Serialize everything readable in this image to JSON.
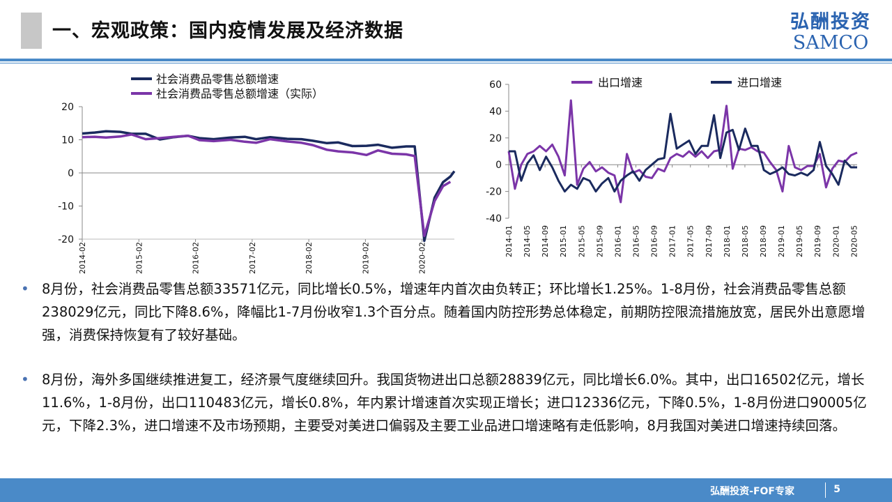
{
  "header": {
    "title": "一、宏观政策：国内疫情发展及经济数据",
    "logo_cn": "弘酬投资",
    "logo_en": "SAMCO",
    "colors": {
      "rule": "#4a8ac8",
      "logo": "#2a63b0"
    }
  },
  "chart_data": [
    {
      "type": "line",
      "series": [
        {
          "name": "社会消费品零售总额增速",
          "color": "#1a2a5e",
          "values": [
            [
              2014.08,
              11.9
            ],
            [
              2014.3,
              12.2
            ],
            [
              2014.5,
              12.6
            ],
            [
              2014.75,
              12.4
            ],
            [
              2014.95,
              11.8
            ],
            [
              2015.2,
              11.8
            ],
            [
              2015.45,
              10.1
            ],
            [
              2015.7,
              10.8
            ],
            [
              2015.95,
              11.2
            ],
            [
              2016.15,
              10.5
            ],
            [
              2016.4,
              10.2
            ],
            [
              2016.7,
              10.7
            ],
            [
              2016.95,
              10.9
            ],
            [
              2017.15,
              10.2
            ],
            [
              2017.4,
              10.8
            ],
            [
              2017.7,
              10.3
            ],
            [
              2017.95,
              10.2
            ],
            [
              2018.15,
              9.7
            ],
            [
              2018.4,
              9.0
            ],
            [
              2018.6,
              9.2
            ],
            [
              2018.85,
              8.1
            ],
            [
              2019.1,
              8.2
            ],
            [
              2019.3,
              8.5
            ],
            [
              2019.55,
              7.6
            ],
            [
              2019.8,
              8.0
            ],
            [
              2019.95,
              8.0
            ],
            [
              2020.12,
              -20.5
            ],
            [
              2020.3,
              -7.5
            ],
            [
              2020.45,
              -2.8
            ],
            [
              2020.58,
              -1.1
            ],
            [
              2020.65,
              0.5
            ]
          ]
        },
        {
          "name": "社会消费品零售总额增速（实际）",
          "color": "#7b35a8",
          "values": [
            [
              2014.08,
              10.8
            ],
            [
              2014.3,
              10.9
            ],
            [
              2014.5,
              10.7
            ],
            [
              2014.75,
              11.0
            ],
            [
              2014.95,
              11.6
            ],
            [
              2015.2,
              10.2
            ],
            [
              2015.45,
              10.5
            ],
            [
              2015.7,
              10.9
            ],
            [
              2015.95,
              11.2
            ],
            [
              2016.15,
              9.9
            ],
            [
              2016.4,
              9.6
            ],
            [
              2016.7,
              10.0
            ],
            [
              2016.95,
              9.4
            ],
            [
              2017.15,
              9.1
            ],
            [
              2017.4,
              10.2
            ],
            [
              2017.7,
              9.5
            ],
            [
              2017.95,
              9.1
            ],
            [
              2018.15,
              8.4
            ],
            [
              2018.4,
              7.0
            ],
            [
              2018.6,
              6.5
            ],
            [
              2018.85,
              6.2
            ],
            [
              2019.1,
              5.4
            ],
            [
              2019.3,
              6.8
            ],
            [
              2019.55,
              5.8
            ],
            [
              2019.8,
              5.6
            ],
            [
              2019.95,
              5.1
            ],
            [
              2020.12,
              -19.0
            ],
            [
              2020.3,
              -8.5
            ],
            [
              2020.45,
              -4.0
            ],
            [
              2020.58,
              -2.7
            ]
          ]
        }
      ],
      "y_ticks": [
        "20",
        "10",
        "0",
        "-10",
        "-20"
      ],
      "x_ticks": [
        "2014-02",
        "2015-02",
        "2016-02",
        "2017-02",
        "2018-02",
        "2019-02",
        "2020-02"
      ],
      "ylim": [
        -20,
        20
      ]
    },
    {
      "type": "line",
      "series": [
        {
          "name": "出口增速",
          "color": "#7b35a8",
          "values": [
            [
              0,
              10
            ],
            [
              1,
              -18
            ],
            [
              2,
              0
            ],
            [
              3,
              8
            ],
            [
              4,
              10
            ],
            [
              5,
              14
            ],
            [
              6,
              10
            ],
            [
              7,
              15
            ],
            [
              8,
              6
            ],
            [
              9,
              -8
            ],
            [
              10,
              48
            ],
            [
              11,
              -15
            ],
            [
              12,
              -3
            ],
            [
              13,
              2
            ],
            [
              14,
              -5
            ],
            [
              15,
              -2
            ],
            [
              16,
              -6
            ],
            [
              17,
              -8
            ],
            [
              18,
              -28
            ],
            [
              19,
              8
            ],
            [
              20,
              -6
            ],
            [
              21,
              -4
            ],
            [
              22,
              -9
            ],
            [
              23,
              -10
            ],
            [
              24,
              -3
            ],
            [
              25,
              -5
            ],
            [
              26,
              5
            ],
            [
              27,
              8
            ],
            [
              28,
              6
            ],
            [
              29,
              10
            ],
            [
              30,
              6
            ],
            [
              31,
              10
            ],
            [
              32,
              5
            ],
            [
              33,
              10
            ],
            [
              34,
              11
            ],
            [
              35,
              44
            ],
            [
              36,
              -3
            ],
            [
              37,
              12
            ],
            [
              38,
              11
            ],
            [
              39,
              13
            ],
            [
              40,
              10
            ],
            [
              41,
              9
            ],
            [
              42,
              2
            ],
            [
              43,
              -4
            ],
            [
              44,
              -20
            ],
            [
              45,
              14
            ],
            [
              46,
              -2
            ],
            [
              47,
              -4
            ],
            [
              48,
              -1
            ],
            [
              49,
              -1
            ],
            [
              50,
              8
            ],
            [
              51,
              -17
            ],
            [
              52,
              -3
            ],
            [
              53,
              3
            ],
            [
              54,
              2
            ],
            [
              55,
              7
            ],
            [
              56,
              9
            ]
          ]
        },
        {
          "name": "进口增速",
          "color": "#1a2a5e",
          "values": [
            [
              0,
              10
            ],
            [
              1,
              10
            ],
            [
              2,
              -12
            ],
            [
              3,
              1
            ],
            [
              4,
              7
            ],
            [
              5,
              -4
            ],
            [
              6,
              6
            ],
            [
              7,
              -2
            ],
            [
              8,
              -12
            ],
            [
              9,
              -20
            ],
            [
              10,
              -15
            ],
            [
              11,
              -18
            ],
            [
              12,
              -10
            ],
            [
              13,
              -12
            ],
            [
              14,
              -20
            ],
            [
              15,
              -14
            ],
            [
              16,
              -10
            ],
            [
              17,
              -20
            ],
            [
              18,
              -12
            ],
            [
              19,
              -8
            ],
            [
              20,
              -5
            ],
            [
              21,
              -12
            ],
            [
              22,
              -4
            ],
            [
              23,
              0
            ],
            [
              24,
              4
            ],
            [
              25,
              5
            ],
            [
              26,
              38
            ],
            [
              27,
              12
            ],
            [
              28,
              15
            ],
            [
              29,
              18
            ],
            [
              30,
              8
            ],
            [
              31,
              14
            ],
            [
              32,
              14
            ],
            [
              33,
              37
            ],
            [
              34,
              5
            ],
            [
              35,
              24
            ],
            [
              36,
              26
            ],
            [
              37,
              11
            ],
            [
              38,
              27
            ],
            [
              39,
              14
            ],
            [
              40,
              14
            ],
            [
              41,
              -4
            ],
            [
              42,
              -7
            ],
            [
              43,
              -5
            ],
            [
              44,
              -2
            ],
            [
              45,
              -7
            ],
            [
              46,
              -8
            ],
            [
              47,
              -6
            ],
            [
              48,
              -8
            ],
            [
              49,
              -4
            ],
            [
              50,
              17
            ],
            [
              51,
              -1
            ],
            [
              52,
              -7
            ],
            [
              53,
              -15
            ],
            [
              54,
              3
            ],
            [
              55,
              -2
            ],
            [
              56,
              -2
            ]
          ]
        }
      ],
      "y_ticks": [
        "60",
        "40",
        "20",
        "0",
        "-20",
        "-40"
      ],
      "x_ticks": [
        "2014-01",
        "2014-05",
        "2014-09",
        "2015-01",
        "2015-05",
        "2015-09",
        "2016-01",
        "2016-05",
        "2016-09",
        "2017-01",
        "2017-05",
        "2017-09",
        "2018-01",
        "2018-05",
        "2018-09",
        "2019-01",
        "2019-05",
        "2019-09",
        "2020-01",
        "2020-05"
      ],
      "ylim": [
        -40,
        60
      ]
    }
  ],
  "bullets": [
    "8月份，社会消费品零售总额33571亿元，同比增长0.5%，增速年内首次由负转正；环比增长1.25%。1-8月份，社会消费品零售总额238029亿元，同比下降8.6%，降幅比1-7月份收窄1.3个百分点。随着国内防控形势总体稳定，前期防控限流措施放宽，居民外出意愿增强，消费保持恢复有了较好基础。",
    "8月份，海外多国继续推进复工，经济景气度继续回升。我国货物进出口总额28839亿元，同比增长6.0%。其中，出口16502亿元，增长11.6%，1-8月份，出口110483亿元，增长0.8%，年内累计增速首次实现正增长；进口12336亿元，下降0.5%，1-8月份进口90005亿元，下降2.3%，进口增速不及市场预期，主要受对美进口偏弱及主要工业品进口增速略有走低影响，8月我国对美进口增速持续回落。"
  ],
  "footer": {
    "text": "弘酬投资-FOF专家",
    "page": "5"
  }
}
